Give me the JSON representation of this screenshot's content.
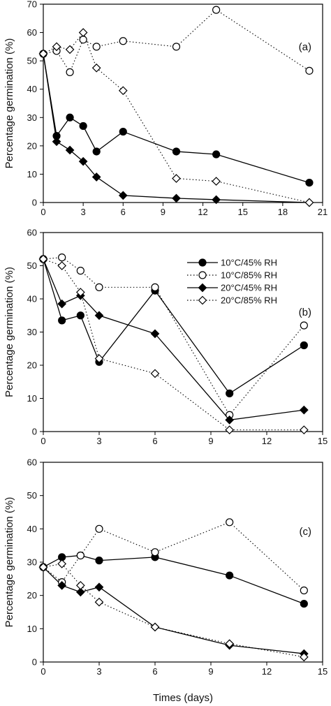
{
  "figure": {
    "xlabel": "Times (days)"
  },
  "legend": [
    {
      "name": "10°C/45% RH",
      "marker": "circle",
      "filled": true,
      "dash": "solid"
    },
    {
      "name": "10°C/85% RH",
      "marker": "circle",
      "filled": false,
      "dash": "dotted"
    },
    {
      "name": "20°C/45% RH",
      "marker": "diamond",
      "filled": true,
      "dash": "solid"
    },
    {
      "name": "20°C/85% RH",
      "marker": "diamond",
      "filled": false,
      "dash": "dotted"
    }
  ],
  "chart_data": [
    {
      "type": "line",
      "panel_label": "(a)",
      "ylabel": "Percentage germination (%)",
      "xlim": [
        0,
        21
      ],
      "ylim": [
        0,
        70
      ],
      "xticks": [
        0,
        3,
        6,
        9,
        12,
        15,
        18,
        21
      ],
      "yticks": [
        0,
        10,
        20,
        30,
        40,
        50,
        60,
        70
      ],
      "series": [
        {
          "name": "10°C/45% RH",
          "x": [
            0,
            1,
            2,
            3,
            4,
            6,
            10,
            13,
            20
          ],
          "y": [
            52.5,
            23.5,
            30,
            27,
            18,
            25,
            18,
            17,
            7
          ]
        },
        {
          "name": "10°C/85% RH",
          "x": [
            0,
            1,
            2,
            3,
            4,
            6,
            10,
            13,
            20
          ],
          "y": [
            52.5,
            53.5,
            46,
            57.5,
            55,
            57,
            55,
            68,
            46.5
          ]
        },
        {
          "name": "20°C/45% RH",
          "x": [
            0,
            1,
            2,
            3,
            4,
            6,
            10,
            13,
            20
          ],
          "y": [
            52.5,
            21.5,
            18.5,
            14.5,
            9,
            2.5,
            1.5,
            1,
            0
          ]
        },
        {
          "name": "20°C/85% RH",
          "x": [
            0,
            1,
            2,
            3,
            4,
            6,
            10,
            13,
            20
          ],
          "y": [
            52.5,
            55,
            54,
            60,
            47.5,
            39.5,
            8.5,
            7.5,
            0
          ]
        }
      ]
    },
    {
      "type": "line",
      "panel_label": "(b)",
      "ylabel": "Percentage germination (%)",
      "xlim": [
        0,
        15
      ],
      "ylim": [
        0,
        60
      ],
      "xticks": [
        0,
        3,
        6,
        9,
        12,
        15
      ],
      "yticks": [
        0,
        10,
        20,
        30,
        40,
        50,
        60
      ],
      "series": [
        {
          "name": "10°C/45% RH",
          "x": [
            0,
            1,
            2,
            3,
            6,
            10,
            14
          ],
          "y": [
            52,
            33.5,
            35,
            21,
            42.5,
            11.5,
            26
          ]
        },
        {
          "name": "10°C/85% RH",
          "x": [
            0,
            1,
            2,
            3,
            6,
            10,
            14
          ],
          "y": [
            52,
            52.5,
            48.5,
            43.5,
            43.5,
            5,
            32
          ]
        },
        {
          "name": "20°C/45% RH",
          "x": [
            0,
            1,
            2,
            3,
            6,
            10,
            14
          ],
          "y": [
            52,
            38.5,
            41,
            35,
            29.5,
            3.5,
            6.5
          ]
        },
        {
          "name": "20°C/85% RH",
          "x": [
            0,
            1,
            2,
            3,
            6,
            10,
            14
          ],
          "y": [
            52,
            50,
            42,
            22,
            17.5,
            0.5,
            0.5
          ]
        }
      ]
    },
    {
      "type": "line",
      "panel_label": "(c)",
      "ylabel": "Percentage germination (%)",
      "xlim": [
        0,
        15
      ],
      "ylim": [
        0,
        60
      ],
      "xticks": [
        0,
        3,
        6,
        9,
        12,
        15
      ],
      "yticks": [
        0,
        10,
        20,
        30,
        40,
        50,
        60
      ],
      "series": [
        {
          "name": "10°C/45% RH",
          "x": [
            0,
            1,
            2,
            3,
            6,
            10,
            14
          ],
          "y": [
            28.5,
            31.5,
            32,
            30.5,
            31.5,
            26,
            17.5
          ]
        },
        {
          "name": "10°C/85% RH",
          "x": [
            0,
            1,
            2,
            3,
            6,
            10,
            14
          ],
          "y": [
            28.5,
            24,
            32,
            40,
            33,
            42,
            21.5
          ]
        },
        {
          "name": "20°C/45% RH",
          "x": [
            0,
            1,
            2,
            3,
            6,
            10,
            14
          ],
          "y": [
            28.5,
            23,
            21,
            22.5,
            10.5,
            5,
            2.5
          ]
        },
        {
          "name": "20°C/85% RH",
          "x": [
            0,
            1,
            2,
            3,
            6,
            10,
            14
          ],
          "y": [
            28.5,
            29.5,
            23,
            18,
            10.5,
            5.5,
            1.5
          ]
        }
      ]
    }
  ]
}
